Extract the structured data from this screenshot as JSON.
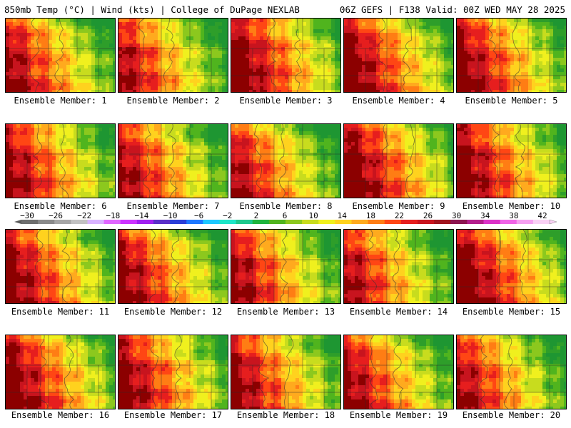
{
  "header": {
    "left": "850mb Temp (°C) | Wind (kts) | College of DuPage NEXLAB",
    "right": "06Z GEFS | F138 Valid: 00Z WED MAY 28 2025"
  },
  "panels": [
    {
      "label": "Ensemble Member: 1"
    },
    {
      "label": "Ensemble Member: 2"
    },
    {
      "label": "Ensemble Member: 3"
    },
    {
      "label": "Ensemble Member: 4"
    },
    {
      "label": "Ensemble Member: 5"
    },
    {
      "label": "Ensemble Member: 6"
    },
    {
      "label": "Ensemble Member: 7"
    },
    {
      "label": "Ensemble Member: 8"
    },
    {
      "label": "Ensemble Member: 9"
    },
    {
      "label": "Ensemble Member: 10"
    },
    {
      "label": "Ensemble Member: 11"
    },
    {
      "label": "Ensemble Member: 12"
    },
    {
      "label": "Ensemble Member: 13"
    },
    {
      "label": "Ensemble Member: 14"
    },
    {
      "label": "Ensemble Member: 15"
    },
    {
      "label": "Ensemble Member: 16"
    },
    {
      "label": "Ensemble Member: 17"
    },
    {
      "label": "Ensemble Member: 18"
    },
    {
      "label": "Ensemble Member: 19"
    },
    {
      "label": "Ensemble Member: 20"
    }
  ],
  "colorbar": {
    "tick_labels": [
      "-30",
      "-26",
      "-22",
      "-18",
      "-14",
      "-10",
      "-6",
      "-2",
      "2",
      "6",
      "10",
      "14",
      "18",
      "22",
      "26",
      "30",
      "34",
      "38",
      "42"
    ],
    "colors": [
      "#6e6e6e",
      "#8a8a8a",
      "#a6a6a6",
      "#c2c2c2",
      "#d9b3ff",
      "#e066ff",
      "#cc33ff",
      "#a020f0",
      "#5a2fc8",
      "#2a3ed8",
      "#1e78ff",
      "#1ec8ff",
      "#1ee6c8",
      "#1ec88c",
      "#1eb43c",
      "#50b41e",
      "#8cc81e",
      "#c8dc1e",
      "#f0f01e",
      "#ffd21e",
      "#ffaa1e",
      "#ff7d14",
      "#ff4614",
      "#e61e1e",
      "#c8141e",
      "#a0141e",
      "#8c1450",
      "#b41e8c",
      "#dc32c8",
      "#f064e6",
      "#f5a0f0",
      "#f8d0f4"
    ]
  },
  "map": {
    "warm_color": "#e61e1e",
    "cool_color": "#1e9632"
  }
}
